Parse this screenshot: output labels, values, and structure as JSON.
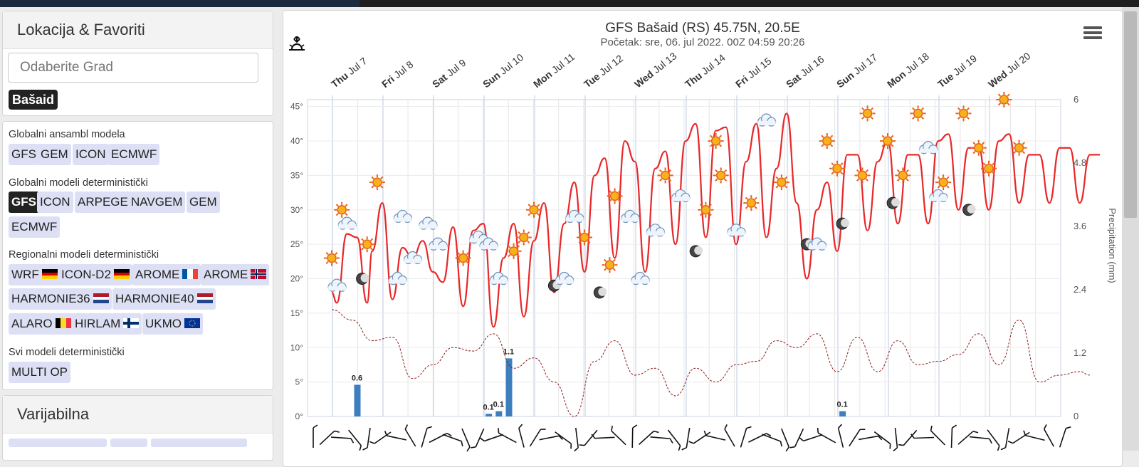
{
  "sidebar": {
    "location_title": "Lokacija & Favoriti",
    "search_placeholder": "Odaberite Grad",
    "favorite": "Bašaid",
    "groups": [
      {
        "label": "Globalni ansambl modela",
        "items": [
          "GFS",
          "GEM",
          "ICON",
          "ECMWF"
        ]
      },
      {
        "label": "Globalni modeli deterministički",
        "items": [
          "GFS",
          "ICON",
          "ARPEGE",
          "NAVGEM",
          "GEM",
          "ECMWF"
        ]
      },
      {
        "label": "Regionalni modeli deterministički",
        "items": [
          "WRF",
          "ICON-D2",
          "AROME",
          "AROME",
          "HARMONIE36",
          "HARMONIE40",
          "ALARO",
          "HIRLAM",
          "UKMO"
        ]
      },
      {
        "label": "Svi modeli deterministički",
        "items": [
          "MULTI OP"
        ]
      }
    ],
    "variables_title": "Varijabilna"
  },
  "chart_data": {
    "type": "line",
    "title": "GFS Bašaid (RS) 45.75N, 20.5E",
    "subtitle_start": "Početak: sre, 06. jul 2022. 00Z",
    "sunrise": "04:59",
    "sunset": "20:26",
    "x_days": [
      "Thu Jul 7",
      "Fri Jul 8",
      "Sat Jul 9",
      "Sun Jul 10",
      "Mon Jul 11",
      "Tue Jul 12",
      "Wed Jul 13",
      "Thu Jul 14",
      "Fri Jul 15",
      "Sat Jul 16",
      "Sun Jul 17",
      "Mon Jul 18",
      "Tue Jul 19",
      "Wed Jul 20"
    ],
    "y_left_ticks": [
      "45°",
      "40°",
      "35°",
      "30°",
      "25°",
      "20°",
      "15°",
      "10°",
      "5°",
      "0°"
    ],
    "y_right_ticks": [
      "6",
      "4.8",
      "3.6",
      "2.4",
      "1.2",
      "0"
    ],
    "y_right_label": "Precipitation (mm)",
    "ylim_temp": [
      0,
      46
    ],
    "ylim_precip": [
      0,
      6
    ],
    "temperature": {
      "x": [
        0,
        0.1,
        0.3,
        0.5,
        0.7,
        0.8,
        1.0,
        1.2,
        1.4,
        1.6,
        1.8,
        2.0,
        2.2,
        2.4,
        2.6,
        2.8,
        3.0,
        3.2,
        3.4,
        3.6,
        3.8,
        4.0,
        4.2,
        4.4,
        4.6,
        4.8,
        5.0,
        5.2,
        5.4,
        5.6,
        5.8,
        6.0,
        6.2,
        6.4,
        6.6,
        6.8,
        7.0,
        7.2,
        7.4,
        7.6,
        7.8,
        8.0,
        8.2,
        8.4,
        8.6,
        8.8,
        9.0,
        9.2,
        9.4,
        9.6,
        9.8,
        10.0,
        10.2,
        10.4,
        10.6,
        10.8,
        11.0,
        11.2,
        11.4,
        11.6,
        11.8,
        12.0,
        12.2,
        12.4,
        12.6,
        12.8,
        13.0,
        13.2,
        13.4,
        13.6,
        13.8,
        14.0,
        14.2,
        14.4,
        14.6,
        14.8,
        15.0,
        15.2
      ],
      "y": [
        18,
        16.5,
        26.5,
        26,
        16.5,
        24,
        31,
        17,
        24.5,
        23,
        25.5,
        21,
        19.5,
        27.5,
        16,
        27,
        28,
        13,
        23,
        28,
        14.5,
        25.5,
        31,
        18,
        28,
        34,
        21,
        35,
        37.5,
        23,
        40,
        37,
        21,
        36,
        38.5,
        25,
        40,
        42.5,
        26,
        41.5,
        42,
        25,
        37,
        42.5,
        26,
        36,
        44,
        31,
        20,
        30,
        34,
        24,
        38,
        38,
        27,
        37,
        40,
        28,
        38,
        38,
        28,
        40,
        41,
        30,
        39,
        39,
        30,
        40,
        41,
        31,
        38,
        38,
        31,
        39,
        39,
        31,
        38,
        38
      ],
      "color": "#e8282a"
    },
    "dewpoint": {
      "x": [
        0,
        0.4,
        0.8,
        1.2,
        1.6,
        2.0,
        2.4,
        2.8,
        3.2,
        3.6,
        4.0,
        4.4,
        4.8,
        5.2,
        5.6,
        6.0,
        6.4,
        6.8,
        7.2,
        7.6,
        8.0,
        8.4,
        8.8,
        9.2,
        9.6,
        10.0,
        10.4,
        10.8,
        11.2,
        11.6,
        12.0,
        12.4,
        12.8,
        13.2,
        13.6,
        14.0,
        14.4,
        14.8,
        15.0
      ],
      "y": [
        15.5,
        14,
        11,
        11.5,
        5.5,
        7.5,
        10,
        9.5,
        12,
        7,
        8.5,
        5,
        0,
        8,
        11,
        6,
        7,
        3,
        7,
        5,
        7.5,
        8,
        11,
        10,
        12,
        6.5,
        11.5,
        6.5,
        11,
        7.5,
        8,
        9,
        12,
        7.5,
        14,
        5,
        6,
        6.5,
        6
      ],
      "color": "#8b1a1a"
    },
    "precipitation": [
      {
        "x": 0.5,
        "value": 0.6,
        "label": "0.6"
      },
      {
        "x": 3.1,
        "value": 0.05,
        "label": "0.1"
      },
      {
        "x": 3.3,
        "value": 0.1,
        "label": "0.1"
      },
      {
        "x": 3.5,
        "value": 1.1,
        "label": "1.1"
      },
      {
        "x": 10.1,
        "value": 0.1,
        "label": "0.1"
      }
    ],
    "grid": true
  }
}
